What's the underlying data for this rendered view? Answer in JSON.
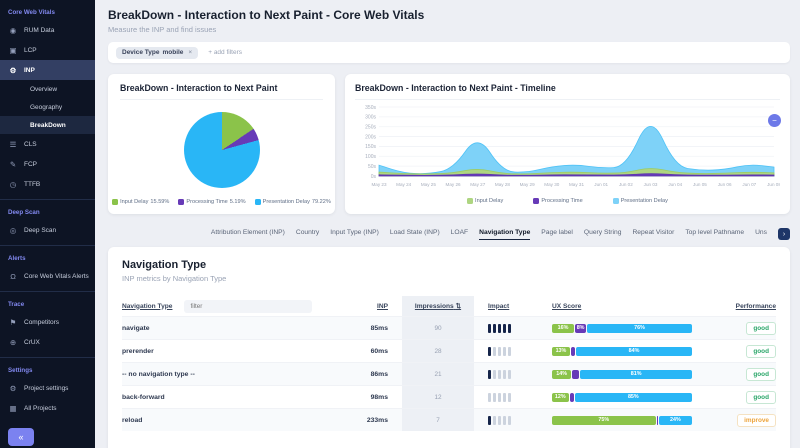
{
  "icons": {
    "user": "◉",
    "image": "▣",
    "gear": "⚙",
    "layers": "☰",
    "paint": "✎",
    "clock": "◷",
    "radar": "◎",
    "bell": "Ω",
    "flag": "⚑",
    "globe": "⊕",
    "projects": "▦",
    "collapse": "«",
    "chip_remove": "×",
    "tabs_more": "›",
    "sort": "⇅",
    "annotation": "−"
  },
  "sidebar": {
    "section_core": "Core Web Vitals",
    "rum": "RUM Data",
    "lcp": "LCP",
    "inp": "INP",
    "overview": "Overview",
    "geography": "Geography",
    "breakdown": "BreakDown",
    "cls": "CLS",
    "fcp": "FCP",
    "ttfb": "TTFB",
    "section_deepscan": "Deep Scan",
    "deepscan": "Deep Scan",
    "section_alerts": "Alerts",
    "cwv_alerts": "Core Web Vitals Alerts",
    "section_trace": "Trace",
    "competitors": "Competitors",
    "crux": "CrUX",
    "section_settings": "Settings",
    "project_settings": "Project settings",
    "all_projects": "All Projects"
  },
  "header": {
    "title": "BreakDown - Interaction to Next Paint - Core Web Vitals",
    "subtitle": "Measure the INP and find issues"
  },
  "filters": {
    "chip_label": "Device Type",
    "chip_value": "mobile",
    "add": "+ add filters"
  },
  "pie_card": {
    "title": "BreakDown - Interaction to Next Paint",
    "legend": [
      {
        "label": "Input Delay",
        "value": "15.59%"
      },
      {
        "label": "Processing Time",
        "value": "5.19%"
      },
      {
        "label": "Presentation Delay",
        "value": "79.22%"
      }
    ]
  },
  "timeline_card": {
    "title": "BreakDown - Interaction to Next Paint - Timeline",
    "legend": [
      "Input Delay",
      "Processing Time",
      "Presentation Delay"
    ]
  },
  "tabs": {
    "items": [
      "Attribution Element (INP)",
      "Country",
      "Input Type (INP)",
      "Load State (INP)",
      "LOAF",
      "Navigation Type",
      "Page label",
      "Query String",
      "Repeat Visitor",
      "Top level Pathname",
      "Uns"
    ]
  },
  "table": {
    "title": "Navigation Type",
    "subtitle": "INP metrics by Navigation Type",
    "filter_placeholder": "filter",
    "headers": {
      "name": "Navigation Type",
      "inp": "INP",
      "impressions": "Impressions",
      "impact": "Impact",
      "ux": "UX Score",
      "performance": "Performance"
    },
    "rows": [
      {
        "name": "navigate",
        "inp": "85ms",
        "impressions": "90",
        "impact_filled": 5,
        "ux": [
          {
            "pct": 16,
            "label": "16%"
          },
          {
            "pct": 8,
            "label": "8%"
          },
          {
            "pct": 76,
            "label": "76%"
          }
        ],
        "performance": "good"
      },
      {
        "name": "prerender",
        "inp": "60ms",
        "impressions": "28",
        "impact_filled": 1,
        "ux": [
          {
            "pct": 13,
            "label": "13%"
          },
          {
            "pct": 3,
            "label": ""
          },
          {
            "pct": 84,
            "label": "84%"
          }
        ],
        "performance": "good"
      },
      {
        "name": "-- no navigation type --",
        "inp": "86ms",
        "impressions": "21",
        "impact_filled": 1,
        "ux": [
          {
            "pct": 14,
            "label": "14%"
          },
          {
            "pct": 5,
            "label": ""
          },
          {
            "pct": 81,
            "label": "81%"
          }
        ],
        "performance": "good"
      },
      {
        "name": "back-forward",
        "inp": "98ms",
        "impressions": "12",
        "impact_filled": 0,
        "ux": [
          {
            "pct": 12,
            "label": "12%"
          },
          {
            "pct": 3,
            "label": ""
          },
          {
            "pct": 85,
            "label": "85%"
          }
        ],
        "performance": "good"
      },
      {
        "name": "reload",
        "inp": "233ms",
        "impressions": "7",
        "impact_filled": 1,
        "ux": [
          {
            "pct": 75,
            "label": "75%"
          },
          {
            "pct": 1,
            "label": ""
          },
          {
            "pct": 24,
            "label": "24%"
          }
        ],
        "performance": "improve"
      }
    ]
  },
  "chart_data": [
    {
      "type": "pie",
      "title": "BreakDown - Interaction to Next Paint",
      "labels": [
        "Input Delay",
        "Processing Time",
        "Presentation Delay"
      ],
      "values": [
        15.59,
        5.19,
        79.22
      ],
      "colors": [
        "#8bc34a",
        "#673ab7",
        "#29b6f6"
      ],
      "legend_position": "bottom"
    },
    {
      "type": "area",
      "title": "BreakDown - Interaction to Next Paint - Timeline",
      "x": [
        "May 23",
        "May 24",
        "May 25",
        "May 26",
        "May 27",
        "May 28",
        "May 29",
        "May 30",
        "May 31",
        "Jun 01",
        "Jun 02",
        "Jun 03",
        "Jun 04",
        "Jun 05",
        "Jun 06",
        "Jun 07",
        "Jun 08"
      ],
      "series": [
        {
          "name": "Input Delay",
          "color": "#aed581",
          "stroke": "#9ccc65",
          "values": [
            20,
            12,
            10,
            15,
            40,
            12,
            10,
            18,
            20,
            14,
            16,
            45,
            18,
            12,
            14,
            20,
            16
          ]
        },
        {
          "name": "Processing Time",
          "color": "#673ab7",
          "stroke": "#5e35b1",
          "values": [
            6,
            4,
            3,
            5,
            12,
            4,
            3,
            6,
            6,
            5,
            5,
            14,
            6,
            4,
            4,
            6,
            5
          ]
        },
        {
          "name": "Presentation Delay",
          "color": "#7ed2f8",
          "stroke": "#4fc3f7",
          "values": [
            55,
            15,
            10,
            35,
            215,
            22,
            18,
            48,
            58,
            40,
            45,
            320,
            48,
            28,
            32,
            60,
            45
          ]
        }
      ],
      "ylim": [
        0,
        350
      ],
      "yticks": [
        "0s",
        "50s",
        "100s",
        "150s",
        "200s",
        "250s",
        "300s",
        "350s"
      ],
      "grid": true,
      "legend_position": "bottom"
    }
  ]
}
